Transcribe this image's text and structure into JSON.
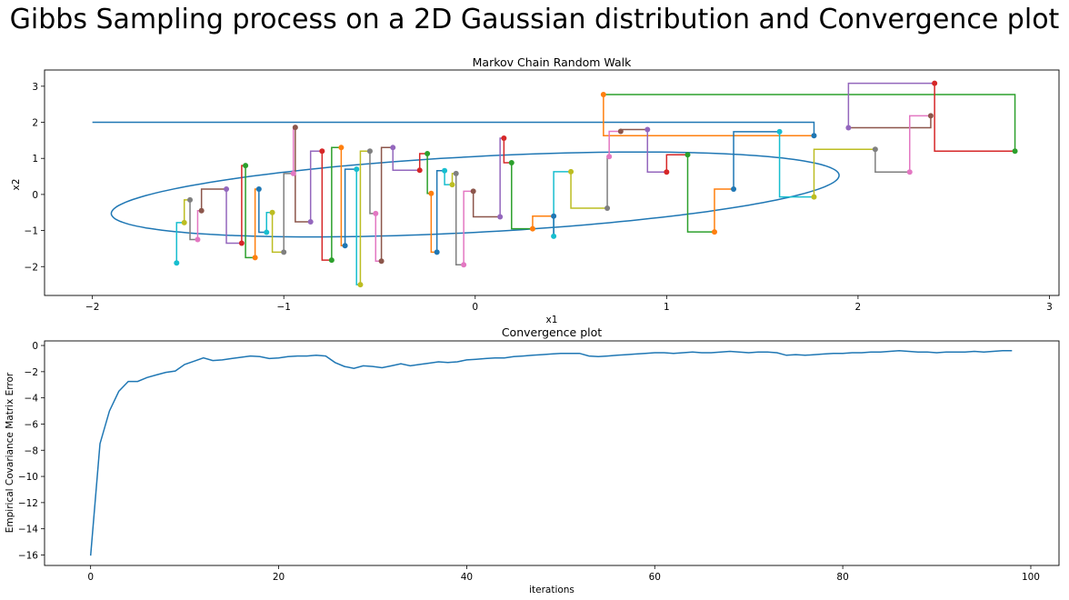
{
  "figure": {
    "title": "Gibbs Sampling process on a 2D Gaussian distribution and Convergence plot"
  },
  "chart_data": [
    {
      "type": "line",
      "title": "Markov Chain Random Walk",
      "xlabel": "x1",
      "ylabel": "x2",
      "xlim": [
        -2.25,
        3.05
      ],
      "ylim": [
        -2.8,
        3.45
      ],
      "xticks": [
        -2,
        -1,
        0,
        1,
        2,
        3
      ],
      "yticks": [
        -2,
        -1,
        0,
        1,
        2,
        3
      ],
      "grid": false,
      "ellipse": {
        "center": [
          0,
          0
        ],
        "radii": [
          2,
          1
        ],
        "rotation_deg": 21,
        "color": "#1f77b4"
      },
      "palette": [
        "#1f77b4",
        "#ff7f0e",
        "#2ca02c",
        "#d62728",
        "#9467bd",
        "#8c564b",
        "#e377c2",
        "#7f7f7f",
        "#bcbd22",
        "#17becf"
      ],
      "path_type": "gibbs-staircase",
      "points": [
        [
          -2.0,
          2.0
        ],
        [
          1.77,
          1.63
        ],
        [
          0.67,
          2.77
        ],
        [
          2.82,
          1.2
        ],
        [
          2.4,
          3.08
        ],
        [
          1.95,
          1.85
        ],
        [
          2.38,
          2.18
        ],
        [
          2.27,
          0.62
        ],
        [
          2.09,
          1.25
        ],
        [
          1.77,
          -0.07
        ],
        [
          1.59,
          1.74
        ],
        [
          1.35,
          0.15
        ],
        [
          1.25,
          -1.04
        ],
        [
          1.11,
          1.1
        ],
        [
          1.0,
          0.62
        ],
        [
          0.9,
          1.8
        ],
        [
          0.76,
          1.75
        ],
        [
          0.7,
          1.05
        ],
        [
          0.69,
          -0.38
        ],
        [
          0.5,
          0.63
        ],
        [
          0.41,
          -1.16
        ],
        [
          0.41,
          -0.6
        ],
        [
          0.3,
          -0.95
        ],
        [
          0.19,
          0.88
        ],
        [
          0.15,
          1.56
        ],
        [
          0.13,
          -0.62
        ],
        [
          -0.01,
          0.09
        ],
        [
          -0.06,
          -1.95
        ],
        [
          -0.1,
          0.58
        ],
        [
          -0.12,
          0.27
        ],
        [
          -0.16,
          0.66
        ],
        [
          -0.2,
          -1.6
        ],
        [
          -0.23,
          0.03
        ],
        [
          -0.25,
          1.13
        ],
        [
          -0.29,
          0.67
        ],
        [
          -0.43,
          1.3
        ],
        [
          -0.49,
          -1.85
        ],
        [
          -0.52,
          -0.53
        ],
        [
          -0.55,
          1.2
        ],
        [
          -0.6,
          -2.5
        ],
        [
          -0.62,
          0.7
        ],
        [
          -0.68,
          -1.42
        ],
        [
          -0.7,
          1.3
        ],
        [
          -0.75,
          -1.82
        ],
        [
          -0.8,
          1.2
        ],
        [
          -0.86,
          -0.76
        ],
        [
          -0.94,
          1.86
        ],
        [
          -0.95,
          0.58
        ],
        [
          -1.0,
          -1.6
        ],
        [
          -1.06,
          -0.5
        ],
        [
          -1.09,
          -1.05
        ],
        [
          -1.13,
          0.15
        ],
        [
          -1.15,
          -1.75
        ],
        [
          -1.2,
          0.8
        ],
        [
          -1.22,
          -1.35
        ],
        [
          -1.3,
          0.15
        ],
        [
          -1.43,
          -0.45
        ],
        [
          -1.45,
          -1.25
        ],
        [
          -1.49,
          -0.15
        ],
        [
          -1.52,
          -0.78
        ],
        [
          -1.56,
          -1.9
        ]
      ]
    },
    {
      "type": "line",
      "title": "Convergence plot",
      "xlabel": "iterations",
      "ylabel": "Empirical Covariance Matrix Error",
      "xlim": [
        -4.9,
        103
      ],
      "ylim": [
        -16.8,
        0.35
      ],
      "xticks": [
        0,
        20,
        40,
        60,
        80,
        100
      ],
      "yticks": [
        0,
        -2,
        -4,
        -6,
        -8,
        -10,
        -12,
        -14,
        -16
      ],
      "grid": false,
      "series": [
        {
          "color": "#1f77b4",
          "x": [
            0,
            1,
            2,
            3,
            4,
            5,
            6,
            7,
            8,
            9,
            10,
            11,
            12,
            13,
            14,
            15,
            16,
            17,
            18,
            19,
            20,
            21,
            22,
            23,
            24,
            25,
            26,
            27,
            28,
            29,
            30,
            31,
            32,
            33,
            34,
            35,
            36,
            37,
            38,
            39,
            40,
            41,
            42,
            43,
            44,
            45,
            46,
            47,
            48,
            49,
            50,
            51,
            52,
            53,
            54,
            55,
            56,
            57,
            58,
            59,
            60,
            61,
            62,
            63,
            64,
            65,
            66,
            67,
            68,
            69,
            70,
            71,
            72,
            73,
            74,
            75,
            76,
            77,
            78,
            79,
            80,
            81,
            82,
            83,
            84,
            85,
            86,
            87,
            88,
            89,
            90,
            91,
            92,
            93,
            94,
            95,
            96,
            97,
            98
          ],
          "y": [
            -16.05,
            -7.5,
            -5.0,
            -3.5,
            -2.75,
            -2.75,
            -2.45,
            -2.25,
            -2.05,
            -1.95,
            -1.45,
            -1.2,
            -0.95,
            -1.15,
            -1.1,
            -1.0,
            -0.9,
            -0.8,
            -0.85,
            -1.0,
            -0.95,
            -0.85,
            -0.8,
            -0.8,
            -0.75,
            -0.8,
            -1.3,
            -1.6,
            -1.75,
            -1.55,
            -1.6,
            -1.7,
            -1.55,
            -1.4,
            -1.55,
            -1.45,
            -1.35,
            -1.25,
            -1.3,
            -1.25,
            -1.1,
            -1.05,
            -1.0,
            -0.95,
            -0.95,
            -0.85,
            -0.8,
            -0.75,
            -0.7,
            -0.65,
            -0.6,
            -0.6,
            -0.6,
            -0.8,
            -0.85,
            -0.8,
            -0.75,
            -0.7,
            -0.65,
            -0.6,
            -0.55,
            -0.55,
            -0.6,
            -0.55,
            -0.5,
            -0.55,
            -0.55,
            -0.5,
            -0.45,
            -0.5,
            -0.55,
            -0.5,
            -0.5,
            -0.55,
            -0.75,
            -0.7,
            -0.75,
            -0.7,
            -0.65,
            -0.6,
            -0.6,
            -0.55,
            -0.55,
            -0.5,
            -0.5,
            -0.45,
            -0.4,
            -0.45,
            -0.5,
            -0.5,
            -0.55,
            -0.5,
            -0.5,
            -0.5,
            -0.45,
            -0.5,
            -0.45,
            -0.4,
            -0.4
          ]
        }
      ]
    }
  ]
}
